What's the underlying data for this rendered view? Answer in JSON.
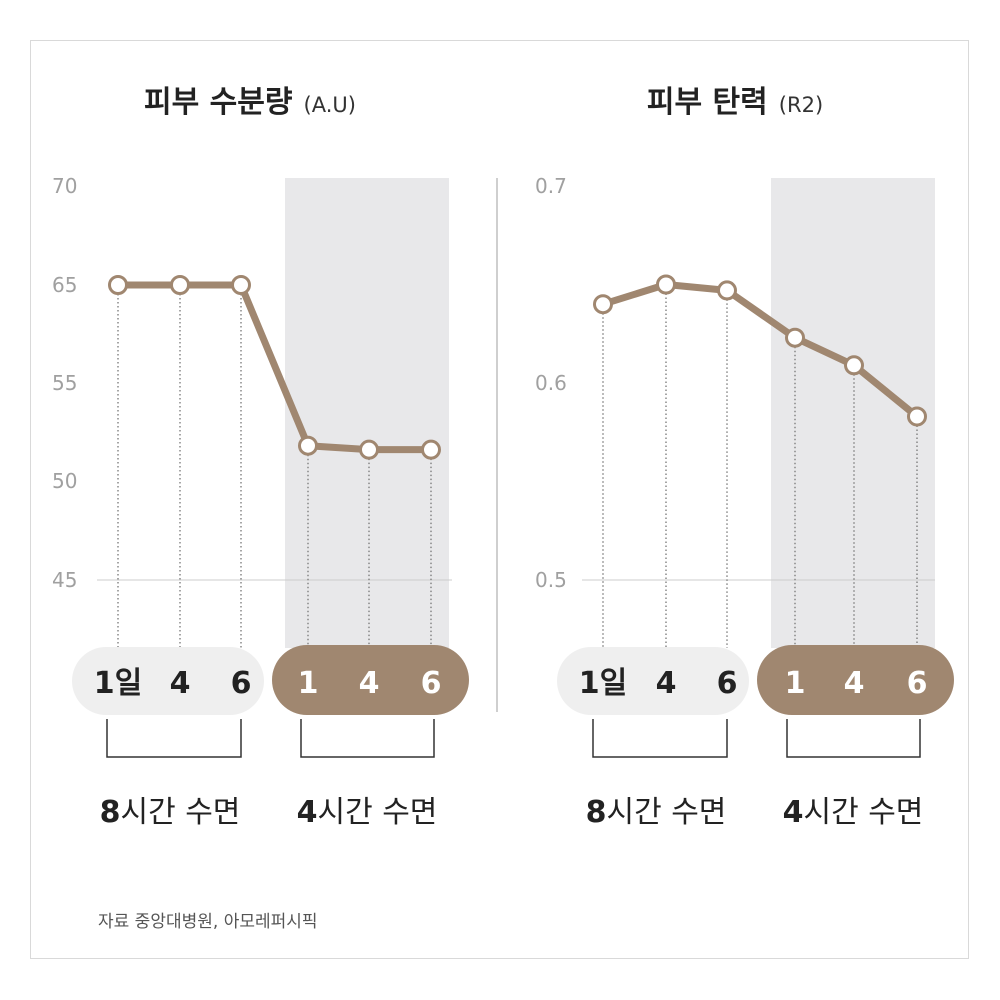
{
  "colors": {
    "accent": "#a08770",
    "shade": "#e8e8ea",
    "pill_light": "#efefef",
    "grid": "#cccccc"
  },
  "chart_data": [
    {
      "type": "line",
      "title": "피부 수분량",
      "unit": "(A.U)",
      "yticks": [
        "70",
        "65",
        "55",
        "50",
        "45"
      ],
      "categories": [
        "1일",
        "4",
        "6",
        "1",
        "4",
        "6"
      ],
      "values": [
        65,
        65,
        65,
        51.8,
        51.6,
        51.6
      ],
      "shaded_group": "4시간 수면"
    },
    {
      "type": "line",
      "title": "피부 탄력",
      "unit": "(R2)",
      "yticks": [
        "0.7",
        "0.6",
        "0.5"
      ],
      "ylim": [
        0.5,
        0.7
      ],
      "categories": [
        "1일",
        "4",
        "6",
        "1",
        "4",
        "6"
      ],
      "values": [
        0.64,
        0.65,
        0.647,
        0.623,
        0.609,
        0.583
      ],
      "shaded_group": "4시간 수면"
    }
  ],
  "groups": {
    "g1_num": "8",
    "g1_rest": "시간 수면",
    "g2_num": "4",
    "g2_rest": "시간 수면"
  },
  "source": "자료 중앙대병원, 아모레퍼시픽"
}
